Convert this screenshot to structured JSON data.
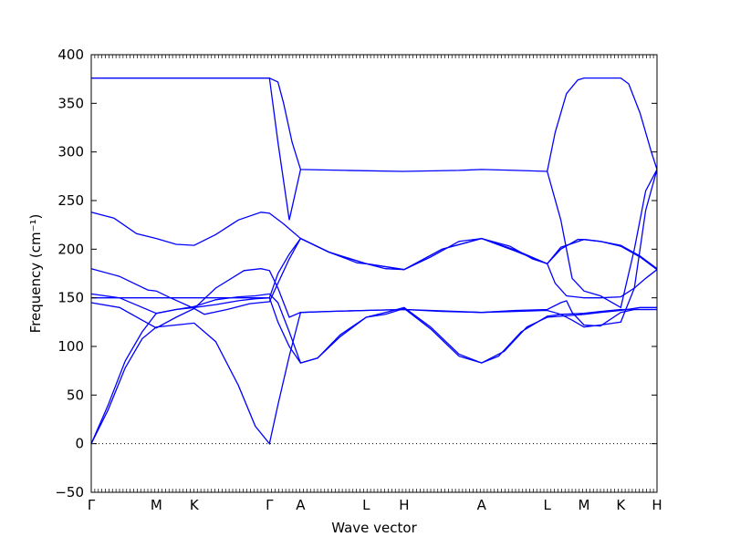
{
  "chart_data": {
    "type": "line",
    "xlabel": "Wave vector",
    "ylabel": "Frequency (cm⁻¹)",
    "ylim": [
      -50,
      400
    ],
    "yticks": [
      -50,
      0,
      50,
      100,
      150,
      200,
      250,
      300,
      350,
      400
    ],
    "grid": false,
    "zero_line": {
      "y": 0,
      "style": "dotted"
    },
    "color": "#0000ff",
    "high_symmetry_points": [
      {
        "label": "Γ",
        "x": 0.0
      },
      {
        "label": "M",
        "x": 0.115
      },
      {
        "label": "K",
        "x": 0.182
      },
      {
        "label": "Γ",
        "x": 0.315
      },
      {
        "label": "A",
        "x": 0.37
      },
      {
        "label": "L",
        "x": 0.486
      },
      {
        "label": "H",
        "x": 0.553
      },
      {
        "label": "A",
        "x": 0.69
      },
      {
        "label": "L",
        "x": 0.806
      },
      {
        "label": "M",
        "x": 0.871
      },
      {
        "label": "K",
        "x": 0.936
      },
      {
        "label": "H",
        "x": 1.0
      }
    ],
    "xlim": [
      0,
      1
    ],
    "series": [
      {
        "values": [
          [
            0,
            0
          ],
          [
            0.03,
            40
          ],
          [
            0.06,
            85
          ],
          [
            0.09,
            115
          ],
          [
            0.115,
            134
          ],
          [
            0.15,
            138
          ],
          [
            0.182,
            140
          ],
          [
            0.22,
            143
          ],
          [
            0.26,
            147
          ],
          [
            0.29,
            149
          ],
          [
            0.315,
            150
          ],
          [
            0.33,
            175
          ],
          [
            0.35,
            195
          ],
          [
            0.37,
            211
          ],
          [
            0.42,
            197
          ],
          [
            0.47,
            186
          ],
          [
            0.486,
            185
          ],
          [
            0.52,
            180
          ],
          [
            0.553,
            179
          ],
          [
            0.6,
            192
          ],
          [
            0.65,
            208
          ],
          [
            0.69,
            211
          ],
          [
            0.74,
            203
          ],
          [
            0.78,
            190
          ],
          [
            0.806,
            185
          ],
          [
            0.83,
            200
          ],
          [
            0.86,
            210
          ],
          [
            0.871,
            210
          ],
          [
            0.9,
            208
          ],
          [
            0.936,
            203
          ],
          [
            0.97,
            192
          ],
          [
            1.0,
            179
          ]
        ]
      },
      {
        "values": [
          [
            0,
            0
          ],
          [
            0.03,
            35
          ],
          [
            0.06,
            78
          ],
          [
            0.09,
            108
          ],
          [
            0.115,
            120
          ],
          [
            0.15,
            122
          ],
          [
            0.182,
            124
          ],
          [
            0.22,
            105
          ],
          [
            0.26,
            60
          ],
          [
            0.29,
            18
          ],
          [
            0.315,
            0
          ],
          [
            0.33,
            40
          ],
          [
            0.35,
            90
          ],
          [
            0.37,
            135
          ],
          [
            0.42,
            136
          ],
          [
            0.486,
            137
          ],
          [
            0.553,
            138
          ],
          [
            0.6,
            137
          ],
          [
            0.69,
            135
          ],
          [
            0.75,
            136
          ],
          [
            0.806,
            137
          ],
          [
            0.83,
            133
          ],
          [
            0.85,
            127
          ],
          [
            0.871,
            120
          ],
          [
            0.9,
            122
          ],
          [
            0.936,
            125
          ],
          [
            0.96,
            160
          ],
          [
            0.98,
            240
          ],
          [
            1.0,
            282
          ]
        ]
      },
      {
        "values": [
          [
            0,
            150
          ],
          [
            0.05,
            150
          ],
          [
            0.115,
            150
          ],
          [
            0.182,
            150
          ],
          [
            0.26,
            150
          ],
          [
            0.315,
            150
          ],
          [
            0.33,
            125
          ],
          [
            0.35,
            100
          ],
          [
            0.37,
            83
          ],
          [
            0.4,
            88
          ],
          [
            0.44,
            110
          ],
          [
            0.486,
            130
          ],
          [
            0.52,
            135
          ],
          [
            0.553,
            140
          ],
          [
            0.6,
            120
          ],
          [
            0.65,
            92
          ],
          [
            0.69,
            83
          ],
          [
            0.72,
            90
          ],
          [
            0.76,
            115
          ],
          [
            0.806,
            131
          ],
          [
            0.83,
            133
          ],
          [
            0.871,
            134
          ],
          [
            0.9,
            136
          ],
          [
            0.936,
            138
          ],
          [
            0.97,
            138
          ],
          [
            1.0,
            138
          ]
        ]
      },
      {
        "values": [
          [
            0,
            154
          ],
          [
            0.05,
            150
          ],
          [
            0.115,
            134
          ],
          [
            0.15,
            138
          ],
          [
            0.182,
            141
          ],
          [
            0.22,
            148
          ],
          [
            0.26,
            151
          ],
          [
            0.29,
            152
          ],
          [
            0.315,
            154
          ],
          [
            0.33,
            145
          ],
          [
            0.35,
            115
          ],
          [
            0.37,
            83
          ],
          [
            0.4,
            88
          ],
          [
            0.44,
            112
          ],
          [
            0.486,
            130
          ],
          [
            0.52,
            133
          ],
          [
            0.553,
            139
          ],
          [
            0.6,
            118
          ],
          [
            0.65,
            90
          ],
          [
            0.69,
            83
          ],
          [
            0.73,
            95
          ],
          [
            0.77,
            120
          ],
          [
            0.806,
            130
          ],
          [
            0.83,
            131
          ],
          [
            0.871,
            133
          ],
          [
            0.9,
            135
          ],
          [
            0.936,
            137
          ],
          [
            0.97,
            140
          ],
          [
            1.0,
            140
          ]
        ]
      },
      {
        "values": [
          [
            0,
            145
          ],
          [
            0.05,
            140
          ],
          [
            0.09,
            127
          ],
          [
            0.115,
            119
          ],
          [
            0.15,
            130
          ],
          [
            0.182,
            139
          ],
          [
            0.2,
            133
          ],
          [
            0.24,
            138
          ],
          [
            0.28,
            144
          ],
          [
            0.315,
            146
          ],
          [
            0.33,
            165
          ],
          [
            0.35,
            190
          ],
          [
            0.37,
            211
          ],
          [
            0.42,
            197
          ],
          [
            0.486,
            185
          ],
          [
            0.553,
            179
          ],
          [
            0.62,
            200
          ],
          [
            0.69,
            211
          ],
          [
            0.75,
            199
          ],
          [
            0.806,
            185
          ],
          [
            0.82,
            165
          ],
          [
            0.84,
            152
          ],
          [
            0.871,
            150
          ],
          [
            0.9,
            150
          ],
          [
            0.936,
            151
          ],
          [
            0.96,
            160
          ],
          [
            0.98,
            170
          ],
          [
            1.0,
            179
          ]
        ]
      },
      {
        "values": [
          [
            0,
            180
          ],
          [
            0.05,
            172
          ],
          [
            0.1,
            158
          ],
          [
            0.115,
            157
          ],
          [
            0.14,
            150
          ],
          [
            0.182,
            139
          ],
          [
            0.22,
            160
          ],
          [
            0.27,
            178
          ],
          [
            0.3,
            180
          ],
          [
            0.315,
            178
          ],
          [
            0.33,
            160
          ],
          [
            0.35,
            130
          ],
          [
            0.37,
            135
          ],
          [
            0.42,
            136
          ],
          [
            0.486,
            137
          ],
          [
            0.553,
            138
          ],
          [
            0.62,
            136
          ],
          [
            0.69,
            135
          ],
          [
            0.75,
            137
          ],
          [
            0.806,
            138
          ],
          [
            0.83,
            145
          ],
          [
            0.84,
            147
          ],
          [
            0.85,
            135
          ],
          [
            0.871,
            122
          ],
          [
            0.9,
            121
          ],
          [
            0.936,
            135
          ],
          [
            0.96,
            138
          ],
          [
            1.0,
            138
          ]
        ]
      },
      {
        "values": [
          [
            0,
            238
          ],
          [
            0.04,
            232
          ],
          [
            0.08,
            216
          ],
          [
            0.115,
            211
          ],
          [
            0.15,
            205
          ],
          [
            0.182,
            204
          ],
          [
            0.22,
            215
          ],
          [
            0.26,
            230
          ],
          [
            0.3,
            238
          ],
          [
            0.315,
            237
          ],
          [
            0.34,
            226
          ],
          [
            0.37,
            211
          ],
          [
            0.42,
            197
          ],
          [
            0.486,
            185
          ],
          [
            0.553,
            179
          ],
          [
            0.62,
            200
          ],
          [
            0.69,
            211
          ],
          [
            0.75,
            198
          ],
          [
            0.806,
            185
          ],
          [
            0.83,
            202
          ],
          [
            0.871,
            210
          ],
          [
            0.9,
            208
          ],
          [
            0.936,
            204
          ],
          [
            0.97,
            193
          ],
          [
            1.0,
            180
          ]
        ]
      },
      {
        "values": [
          [
            0,
            376
          ],
          [
            0.1,
            376
          ],
          [
            0.2,
            376
          ],
          [
            0.315,
            376
          ],
          [
            0.33,
            372
          ],
          [
            0.34,
            350
          ],
          [
            0.355,
            310
          ],
          [
            0.37,
            282
          ],
          [
            0.45,
            281
          ],
          [
            0.55,
            280
          ],
          [
            0.65,
            281
          ],
          [
            0.69,
            282
          ],
          [
            0.75,
            281
          ],
          [
            0.806,
            280
          ],
          [
            0.82,
            320
          ],
          [
            0.84,
            360
          ],
          [
            0.86,
            374
          ],
          [
            0.871,
            376
          ],
          [
            0.9,
            376
          ],
          [
            0.936,
            376
          ],
          [
            0.95,
            370
          ],
          [
            0.97,
            340
          ],
          [
            0.99,
            300
          ],
          [
            1.0,
            282
          ]
        ]
      },
      {
        "values": [
          [
            0,
            376
          ],
          [
            0.315,
            376
          ],
          [
            0.33,
            310
          ],
          [
            0.35,
            230
          ],
          [
            0.37,
            282
          ]
        ]
      },
      {
        "values": [
          [
            0.806,
            280
          ],
          [
            0.83,
            230
          ],
          [
            0.85,
            170
          ],
          [
            0.871,
            157
          ],
          [
            0.9,
            152
          ],
          [
            0.936,
            140
          ],
          [
            0.96,
            200
          ],
          [
            0.98,
            260
          ],
          [
            1.0,
            282
          ]
        ]
      }
    ]
  }
}
